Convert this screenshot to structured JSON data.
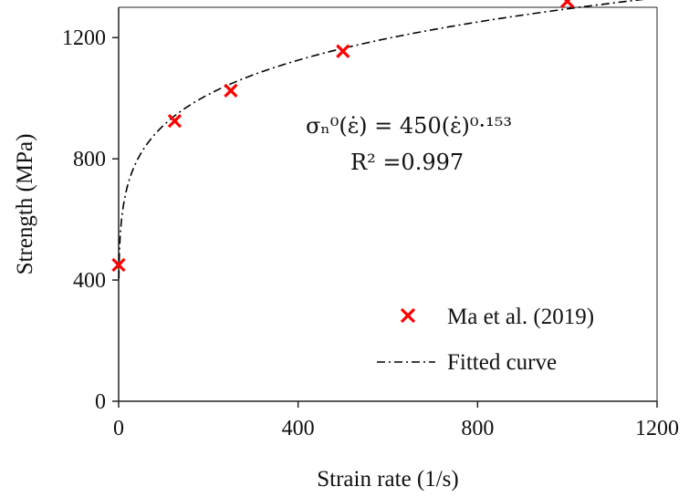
{
  "chart_data": {
    "type": "scatter",
    "title": "",
    "xlabel": "Strain rate (1/s)",
    "ylabel": "Strength (MPa)",
    "xlim": [
      0,
      1200
    ],
    "ylim": [
      0,
      1300
    ],
    "xticks": [
      0,
      400,
      800,
      1200
    ],
    "yticks": [
      0,
      400,
      800,
      1200
    ],
    "x_tick_labels": [
      "0",
      "400",
      "800",
      "1200"
    ],
    "y_tick_labels": [
      "0",
      "400",
      "800",
      "1200"
    ],
    "grid": false,
    "legend_position": "bottom-right",
    "series": [
      {
        "name": "Ma et al. (2019)",
        "kind": "scatter",
        "marker": "x",
        "color": "#ff0000",
        "x": [
          0.001,
          125,
          250,
          500,
          1000
        ],
        "y": [
          450,
          925,
          1025,
          1155,
          1320
        ]
      },
      {
        "name": "Fitted curve",
        "kind": "line",
        "style": "dash-dot",
        "color": "#000000",
        "equation": {
          "coefficient": 450,
          "exponent": 0.153
        },
        "x_range": [
          0.5,
          1200
        ]
      }
    ],
    "annotations": {
      "equation": "σₙ⁰(ε̇) = 450(ε̇)⁰·¹⁵³",
      "r_squared": "R² =0.997"
    }
  }
}
